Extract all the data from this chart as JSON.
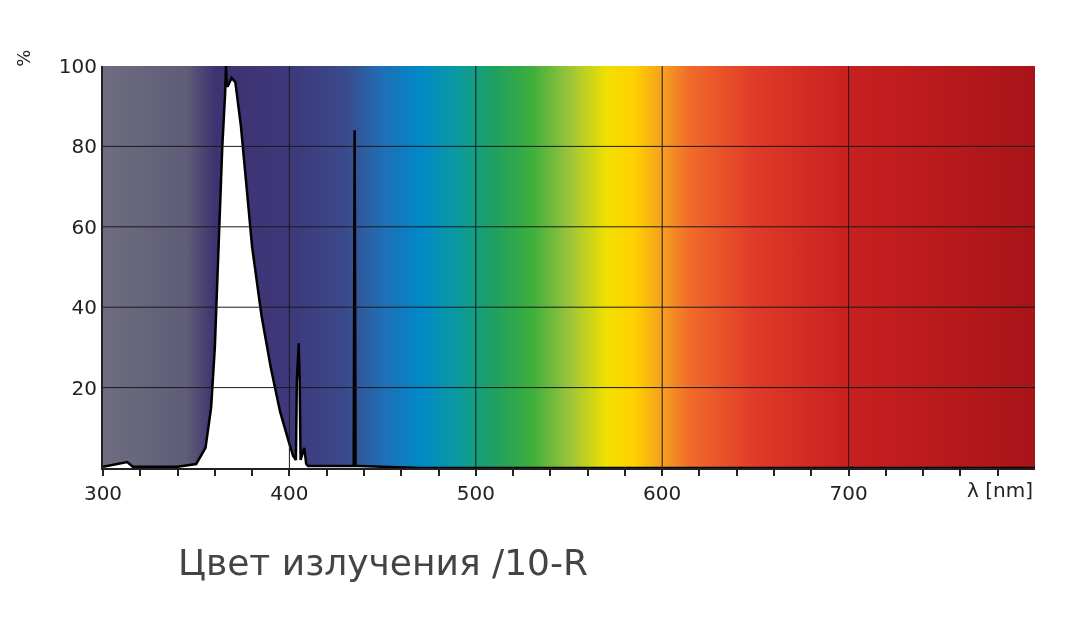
{
  "chart_data": {
    "type": "area",
    "xlabel": "λ [nm]",
    "ylabel": "%",
    "annotations": [
      "Цвет излучения /10-R"
    ],
    "x": [
      300,
      313,
      316,
      340,
      350,
      355,
      358,
      360,
      362,
      364,
      365.5,
      366,
      366.5,
      367,
      369,
      371,
      374,
      377,
      380,
      385,
      390,
      395,
      400,
      402,
      403.5,
      404,
      405,
      405.5,
      406,
      408,
      409,
      410,
      420,
      434.5,
      435,
      435.5,
      437,
      450,
      470,
      800
    ],
    "series": [
      {
        "color": "#000000",
        "values": [
          0.3,
          1.5,
          0.3,
          0.3,
          1,
          5,
          15,
          30,
          55,
          80,
          93,
          100,
          95,
          95,
          97,
          96,
          85,
          70,
          55,
          38,
          25,
          14,
          6,
          3,
          2,
          22,
          31,
          22,
          2,
          5,
          1,
          0.5,
          0.5,
          0.5,
          84,
          0.5,
          0.5,
          0.3,
          0,
          0
        ]
      }
    ],
    "xlim": [
      300,
      800
    ],
    "ylim": [
      0,
      100
    ],
    "xticks": [
      300,
      {
        "value": 320,
        "label": null
      },
      {
        "value": 340,
        "label": null
      },
      {
        "value": 360,
        "label": null
      },
      {
        "value": 380,
        "label": null
      },
      400,
      {
        "value": 420,
        "label": null
      },
      {
        "value": 440,
        "label": null
      },
      {
        "value": 460,
        "label": null
      },
      {
        "value": 480,
        "label": null
      },
      500,
      {
        "value": 520,
        "label": null
      },
      {
        "value": 540,
        "label": null
      },
      {
        "value": 560,
        "label": null
      },
      {
        "value": 580,
        "label": null
      },
      600,
      {
        "value": 620,
        "label": null
      },
      {
        "value": 640,
        "label": null
      },
      {
        "value": 660,
        "label": null
      },
      {
        "value": 680,
        "label": null
      },
      700,
      {
        "value": 720,
        "label": null
      },
      {
        "value": 740,
        "label": null
      },
      {
        "value": 760,
        "label": null
      },
      {
        "value": 780,
        "label": null
      }
    ],
    "yticks": [
      20,
      40,
      60,
      80,
      100
    ],
    "grid": true
  }
}
